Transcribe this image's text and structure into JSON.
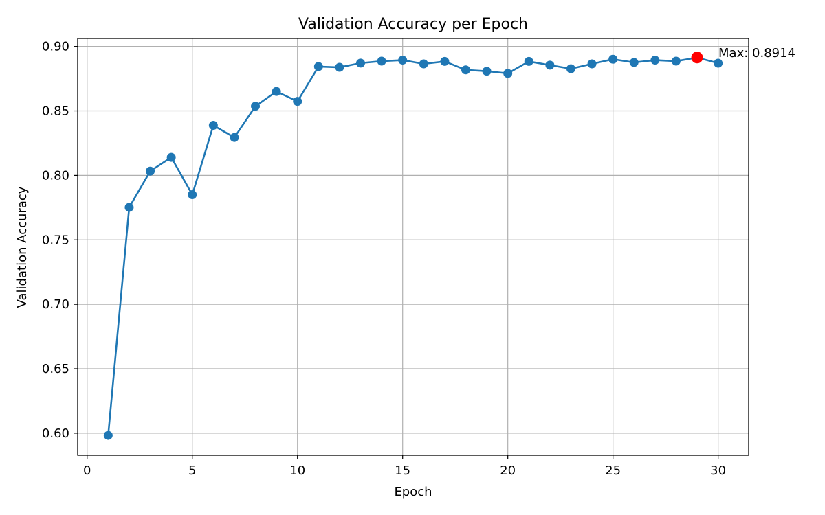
{
  "chart_data": {
    "type": "line",
    "title": "Validation Accuracy per Epoch",
    "xlabel": "Epoch",
    "ylabel": "Validation Accuracy",
    "xlim": [
      -0.45,
      31.45
    ],
    "ylim": [
      0.5829,
      0.9062
    ],
    "xticks": [
      0,
      5,
      10,
      15,
      20,
      25,
      30
    ],
    "yticks": [
      0.6,
      0.65,
      0.7,
      0.75,
      0.8,
      0.85,
      0.9
    ],
    "xtick_labels": [
      "0",
      "5",
      "10",
      "15",
      "20",
      "25",
      "30"
    ],
    "ytick_labels": [
      "0.60",
      "0.65",
      "0.70",
      "0.75",
      "0.80",
      "0.85",
      "0.90"
    ],
    "grid": true,
    "series": [
      {
        "color": "#1f77b4",
        "marker": "circle",
        "x": [
          1,
          2,
          3,
          4,
          5,
          6,
          7,
          8,
          9,
          10,
          11,
          12,
          13,
          14,
          15,
          16,
          17,
          18,
          19,
          20,
          21,
          22,
          23,
          24,
          25,
          26,
          27,
          28,
          29,
          30
        ],
        "y": [
          0.5983,
          0.7752,
          0.8033,
          0.814,
          0.785,
          0.8388,
          0.8294,
          0.8536,
          0.8651,
          0.8574,
          0.8844,
          0.8838,
          0.8871,
          0.8886,
          0.8894,
          0.8865,
          0.8884,
          0.8818,
          0.8808,
          0.8791,
          0.8884,
          0.8855,
          0.8827,
          0.8865,
          0.8901,
          0.8876,
          0.8894,
          0.8886,
          0.8914,
          0.887
        ]
      }
    ],
    "highlight": {
      "x": 29,
      "y": 0.8914,
      "color": "#ff0000",
      "label": "Max: 0.8914"
    }
  }
}
